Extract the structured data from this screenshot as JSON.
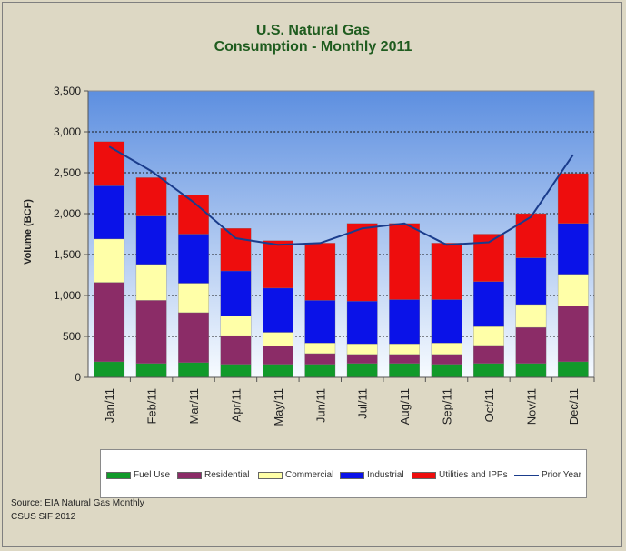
{
  "colors": {
    "background": "#ddd8c4",
    "plot_top": "#5d8fe0",
    "plot_bottom": "#f7fbff",
    "fuel_use": "#119a2a",
    "residential": "#8b2c67",
    "commercial": "#ffffa8",
    "industrial": "#0a12e8",
    "utilities": "#ee0d0d",
    "prior_year": "#1a3c8c",
    "title": "#1f5c1f"
  },
  "chart_data": {
    "type": "bar",
    "stacked": true,
    "title": "U.S. Natural Gas",
    "subtitle": "Consumption - Monthly 2011",
    "xlabel": "",
    "ylabel": "Volume (BCF)",
    "ylim": [
      0,
      3500
    ],
    "yticks": [
      "0",
      "500",
      "1,000",
      "1,500",
      "2,000",
      "2,500",
      "3,000",
      "3,500"
    ],
    "grid": true,
    "legend_position": "bottom",
    "categories": [
      "Jan/11",
      "Feb/11",
      "Mar/11",
      "Apr/11",
      "May/11",
      "Jun/11",
      "Jul/11",
      "Aug/11",
      "Sep/11",
      "Oct/11",
      "Nov/11",
      "Dec/11"
    ],
    "series": [
      {
        "name": "Fuel Use",
        "color_key": "fuel_use",
        "values": [
          190,
          170,
          180,
          160,
          160,
          160,
          170,
          170,
          160,
          170,
          170,
          190
        ]
      },
      {
        "name": "Residential",
        "color_key": "residential",
        "values": [
          970,
          770,
          610,
          350,
          220,
          130,
          110,
          110,
          120,
          220,
          440,
          680
        ]
      },
      {
        "name": "Commercial",
        "color_key": "commercial",
        "values": [
          530,
          440,
          360,
          240,
          170,
          130,
          130,
          130,
          140,
          230,
          280,
          390
        ]
      },
      {
        "name": "Industrial",
        "color_key": "industrial",
        "values": [
          650,
          590,
          600,
          550,
          540,
          520,
          520,
          540,
          530,
          550,
          570,
          620
        ]
      },
      {
        "name": "Utilities and IPPs",
        "color_key": "utilities",
        "values": [
          540,
          470,
          480,
          520,
          580,
          700,
          950,
          930,
          690,
          580,
          540,
          610
        ]
      }
    ],
    "line_series": {
      "name": "Prior Year",
      "color_key": "prior_year",
      "values": [
        2820,
        2520,
        2140,
        1700,
        1620,
        1640,
        1820,
        1880,
        1620,
        1650,
        1960,
        2720
      ]
    }
  },
  "source_lines": [
    "Source: EIA Natural Gas Monthly",
    "CSUS SIF 2012"
  ]
}
